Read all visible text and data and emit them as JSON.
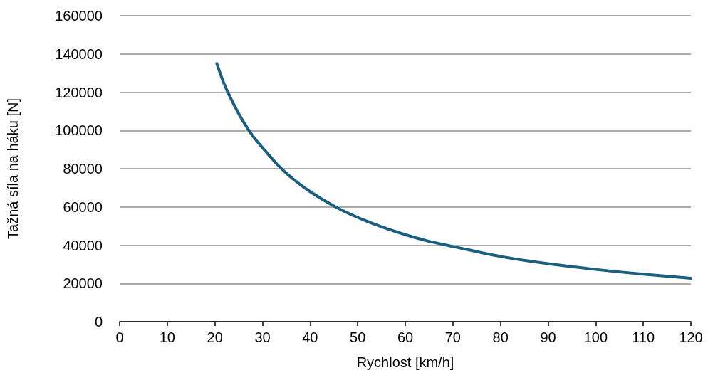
{
  "chart_data": {
    "type": "line",
    "xlabel": "Rychlost [km/h]",
    "ylabel": "Tažná síla na háku [N]",
    "x": [
      20.4,
      22,
      24,
      26,
      28,
      30,
      33,
      36,
      40,
      45,
      50,
      55,
      60,
      65,
      70,
      80,
      90,
      100,
      110,
      120
    ],
    "series": [
      {
        "color": "#1a5f80",
        "values": [
          135000,
          124000,
          113500,
          104500,
          97000,
          91000,
          82500,
          75500,
          68000,
          60500,
          54500,
          49600,
          45500,
          42000,
          39300,
          34100,
          30300,
          27300,
          24800,
          22700
        ]
      }
    ],
    "xlim": [
      0,
      120
    ],
    "xticks": [
      0,
      10,
      20,
      30,
      40,
      50,
      60,
      70,
      80,
      90,
      100,
      110,
      120
    ],
    "ylim": [
      0,
      160000
    ],
    "yticks": [
      0,
      20000,
      40000,
      60000,
      80000,
      100000,
      120000,
      140000,
      160000
    ],
    "grid": "y",
    "marker": "none",
    "line_style": "solid"
  }
}
